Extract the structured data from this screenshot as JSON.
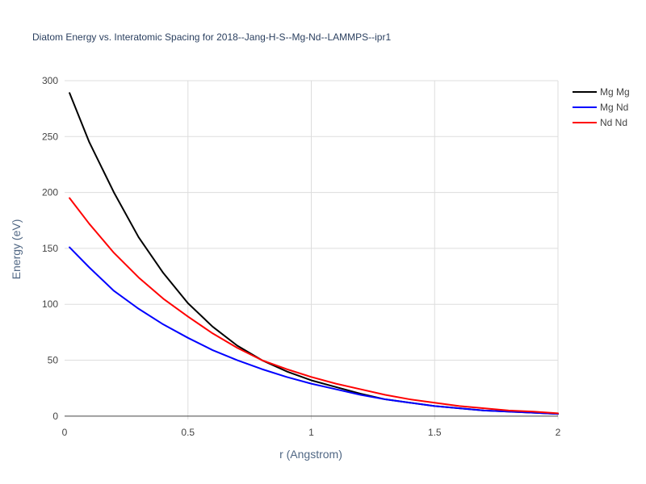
{
  "chart_data": {
    "type": "line",
    "title": "Diatom Energy vs. Interatomic Spacing for 2018--Jang-H-S--Mg-Nd--LAMMPS--ipr1",
    "xlabel": "r (Angstrom)",
    "ylabel": "Energy (eV)",
    "xlim": [
      0,
      2
    ],
    "ylim": [
      -3,
      300
    ],
    "xticks": [
      0,
      0.5,
      1,
      1.5,
      2
    ],
    "xtick_labels": [
      "0",
      "0.5",
      "1",
      "1.5",
      "2"
    ],
    "yticks": [
      0,
      50,
      100,
      150,
      200,
      250,
      300
    ],
    "ytick_labels": [
      "0",
      "50",
      "100",
      "150",
      "200",
      "250",
      "300"
    ],
    "grid": true,
    "legend_position": "top-right",
    "x": [
      0.02,
      0.1,
      0.2,
      0.3,
      0.4,
      0.5,
      0.6,
      0.7,
      0.8,
      0.9,
      1.0,
      1.1,
      1.2,
      1.3,
      1.4,
      1.5,
      1.6,
      1.7,
      1.8,
      1.9,
      2.0
    ],
    "series": [
      {
        "name": "Mg Mg",
        "color": "#000000",
        "values": [
          289,
          245,
          200,
          160,
          128,
          101,
          80,
          63,
          50,
          40,
          32,
          26,
          20,
          15,
          12,
          9,
          7,
          5,
          4,
          3,
          2
        ]
      },
      {
        "name": "Mg Nd",
        "color": "#0000ff",
        "values": [
          151,
          133,
          112,
          96,
          82,
          70,
          59,
          50,
          42,
          35,
          29,
          24,
          19,
          15,
          12,
          9,
          7,
          5,
          4,
          3,
          2
        ]
      },
      {
        "name": "Nd Nd",
        "color": "#ff0000",
        "values": [
          195,
          172,
          146,
          124,
          105,
          89,
          74,
          61,
          50,
          42,
          35,
          29,
          24,
          19,
          15,
          12,
          9,
          7,
          5,
          4,
          2.5
        ]
      }
    ]
  }
}
